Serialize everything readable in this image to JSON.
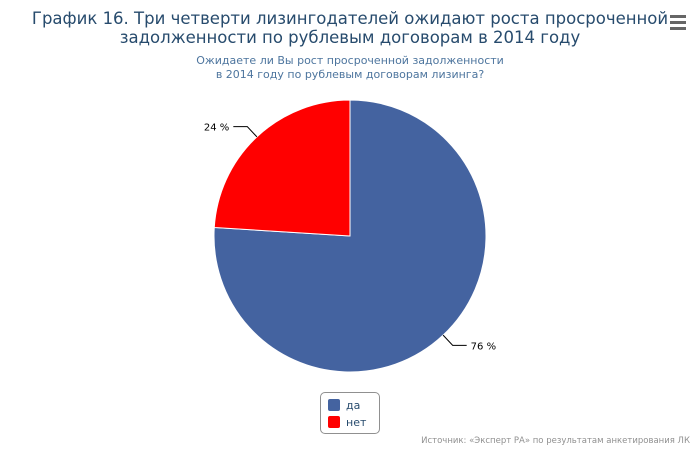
{
  "header": {
    "title_line1": "График 16. Три четверти лизингодателей ожидают роста просроченной",
    "title_line2": "задолженности по рублевым договорам в 2014 году",
    "subtitle_line1": "Ожидаете ли Вы рост просроченной задолженности",
    "subtitle_line2": "в 2014 году по рублевым договорам лизинга?",
    "menu_icon": "hamburger-menu-icon"
  },
  "chart_data": {
    "type": "pie",
    "title": "График 16. Три четверти лизингодателей ожидают роста просроченной задолженности по рублевым договорам в 2014 году",
    "subtitle": "Ожидаете ли Вы рост просроченной задолженности в 2014 году по рублевым договорам лизинга?",
    "categories": [
      "да",
      "нет"
    ],
    "values": [
      76,
      24
    ],
    "data_labels": [
      "76 %",
      "24 %"
    ],
    "colors": [
      "#4463a0",
      "#ff0000"
    ],
    "legend_placement": "bottom-center"
  },
  "legend": {
    "items": [
      {
        "label": "да",
        "color": "#4463a0"
      },
      {
        "label": "нет",
        "color": "#ff0000"
      }
    ]
  },
  "credits": "Источник: «Эксперт РА» по результатам анкетирования ЛК"
}
